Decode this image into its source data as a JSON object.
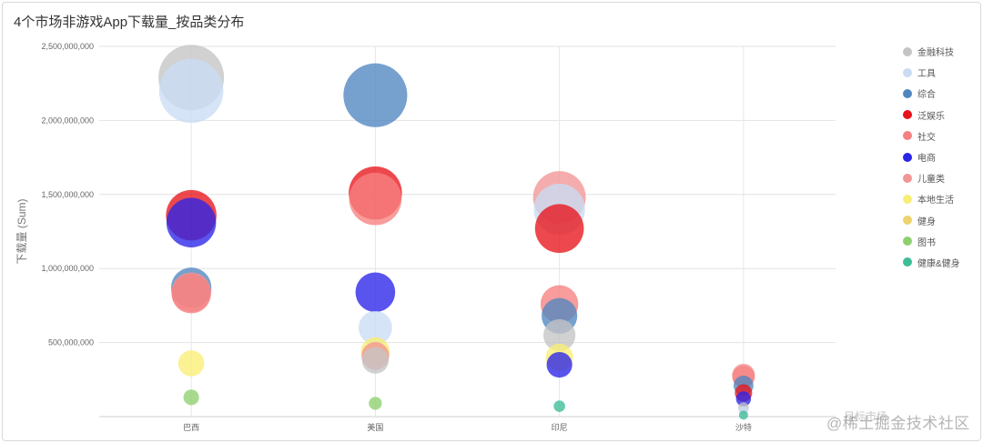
{
  "chart_data": {
    "type": "scatter",
    "title": "4个市场非游戏App下载量_按品类分布",
    "xlabel": "目标市场",
    "ylabel": "下载量 (Sum)",
    "categories": [
      "巴西",
      "美国",
      "印尼",
      "沙特"
    ],
    "y_ticks": [
      "500,000,000",
      "1,000,000,000",
      "1,500,000,000",
      "2,000,000,000",
      "2,500,000,000"
    ],
    "ylim": [
      0,
      2500000000
    ],
    "grid": true,
    "legend_position": "right",
    "watermark": "@稀土掘金技术社区",
    "series": [
      {
        "name": "金融科技",
        "color": "#c4c4c4",
        "values": [
          2290000000,
          380000000,
          550000000,
          60000000
        ]
      },
      {
        "name": "工具",
        "color": "#c9dcf4",
        "values": [
          2200000000,
          600000000,
          1400000000,
          40000000
        ]
      },
      {
        "name": "综合",
        "color": "#4f86c0",
        "values": [
          870000000,
          2170000000,
          680000000,
          210000000
        ]
      },
      {
        "name": "泛娱乐",
        "color": "#e8141b",
        "values": [
          1360000000,
          1510000000,
          1270000000,
          160000000
        ]
      },
      {
        "name": "社交",
        "color": "#f78080",
        "values": [
          830000000,
          1470000000,
          760000000,
          270000000
        ]
      },
      {
        "name": "电商",
        "color": "#2a24e8",
        "values": [
          1310000000,
          840000000,
          350000000,
          120000000
        ]
      },
      {
        "name": "儿童类",
        "color": "#f29595",
        "values": [
          840000000,
          410000000,
          1480000000,
          280000000
        ]
      },
      {
        "name": "本地生活",
        "color": "#f8ee74",
        "values": [
          360000000,
          440000000,
          400000000,
          0
        ]
      },
      {
        "name": "健身",
        "color": "#ecd36b",
        "values": [
          0,
          0,
          0,
          0
        ]
      },
      {
        "name": "图书",
        "color": "#8ed06f",
        "values": [
          130000000,
          90000000,
          0,
          0
        ]
      },
      {
        "name": "健康&健身",
        "color": "#3dbd98",
        "values": [
          0,
          0,
          70000000,
          10000000
        ]
      }
    ]
  }
}
